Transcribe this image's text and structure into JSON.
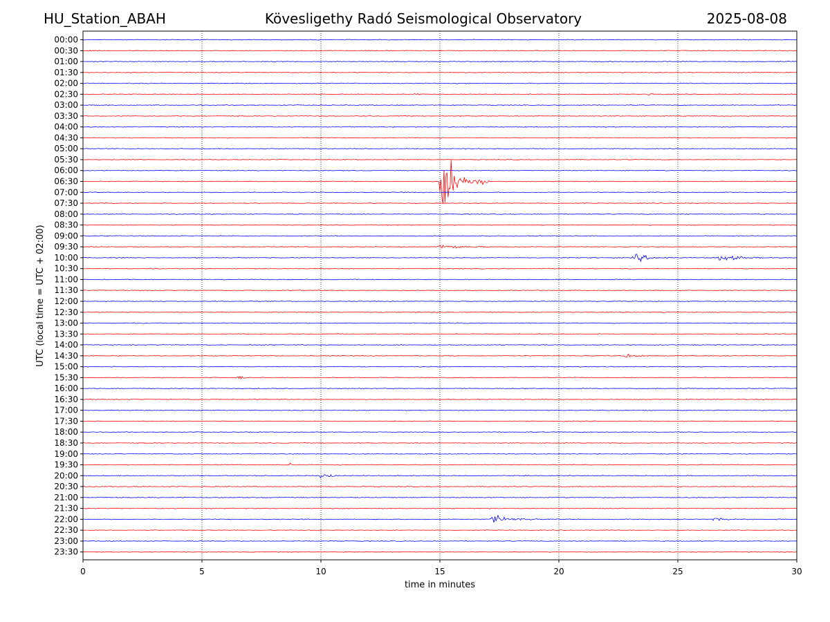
{
  "header": {
    "station": "HU_Station_ABAH",
    "observatory": "Kövesligethy Radó Seismological Observatory",
    "date": "2025-08-08"
  },
  "chart_data": {
    "type": "line",
    "title": "Kövesligethy Radó Seismological Observatory",
    "xlabel": "time in minutes",
    "ylabel": "UTC (local time = UTC + 02:00)",
    "xlim": [
      0,
      30
    ],
    "x_ticks": [
      0,
      5,
      10,
      15,
      20,
      25,
      30
    ],
    "grid": "vertical dotted lines at x ticks",
    "colors": {
      "even_rows": "#0000ff",
      "odd_rows": "#ff0000"
    },
    "rows": [
      "00:00",
      "00:30",
      "01:00",
      "01:30",
      "02:00",
      "02:30",
      "03:00",
      "03:30",
      "04:00",
      "04:30",
      "05:00",
      "05:30",
      "06:00",
      "06:30",
      "07:00",
      "07:30",
      "08:00",
      "08:30",
      "09:00",
      "09:30",
      "10:00",
      "10:30",
      "11:00",
      "11:30",
      "12:00",
      "12:30",
      "13:00",
      "13:30",
      "14:00",
      "14:30",
      "15:00",
      "15:30",
      "16:00",
      "16:30",
      "17:00",
      "17:30",
      "18:00",
      "18:30",
      "19:00",
      "19:30",
      "20:00",
      "20:30",
      "21:00",
      "21:30",
      "22:00",
      "22:30",
      "23:00",
      "23:30"
    ],
    "events": [
      {
        "row": "02:30",
        "minute": 14.0,
        "amplitude": 0.15,
        "duration": 0.4
      },
      {
        "row": "02:30",
        "minute": 23.8,
        "amplitude": 0.2,
        "duration": 0.6
      },
      {
        "row": "06:30",
        "minute": 15.1,
        "amplitude": 4.5,
        "duration": 2.0
      },
      {
        "row": "09:30",
        "minute": 15.0,
        "amplitude": 0.45,
        "duration": 2.2
      },
      {
        "row": "10:00",
        "minute": 23.2,
        "amplitude": 0.6,
        "duration": 1.8
      },
      {
        "row": "10:00",
        "minute": 26.8,
        "amplitude": 0.6,
        "duration": 1.8
      },
      {
        "row": "14:30",
        "minute": 22.8,
        "amplitude": 0.25,
        "duration": 1.6
      },
      {
        "row": "15:30",
        "minute": 6.6,
        "amplitude": 0.3,
        "duration": 0.3
      },
      {
        "row": "19:30",
        "minute": 8.65,
        "amplitude": 0.6,
        "duration": 0.3
      },
      {
        "row": "20:00",
        "minute": 10.0,
        "amplitude": 0.35,
        "duration": 1.0
      },
      {
        "row": "22:00",
        "minute": 17.2,
        "amplitude": 0.7,
        "duration": 2.0
      },
      {
        "row": "22:00",
        "minute": 26.5,
        "amplitude": 0.2,
        "duration": 1.4
      }
    ]
  }
}
